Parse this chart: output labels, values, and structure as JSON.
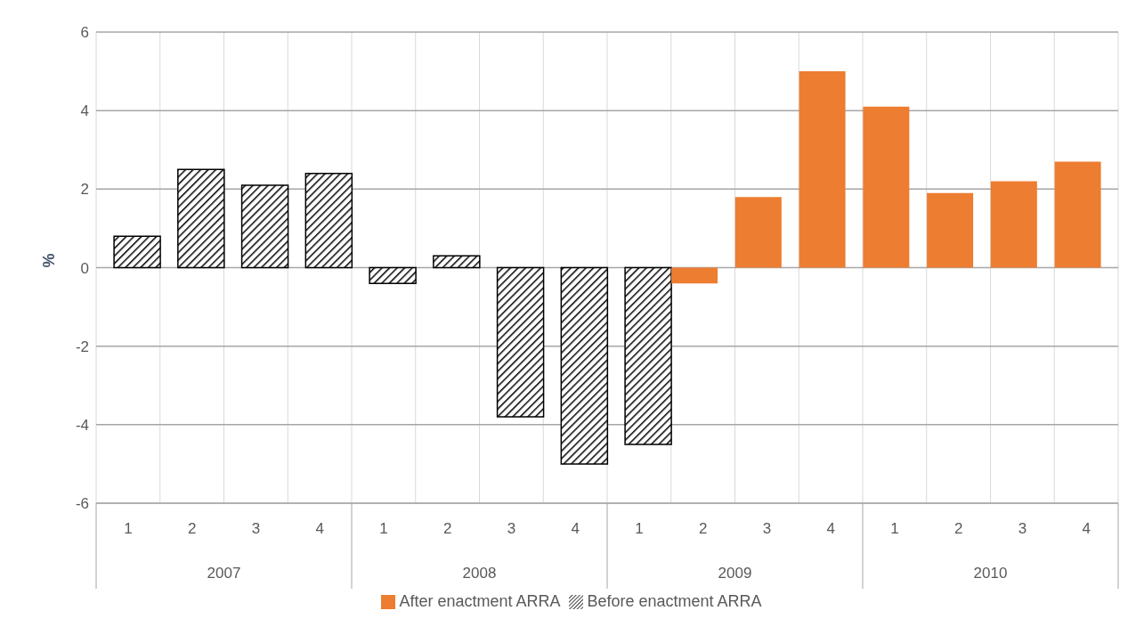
{
  "chart_data": {
    "type": "bar",
    "ylabel": "%",
    "categories": [
      "1",
      "2",
      "3",
      "4",
      "1",
      "2",
      "3",
      "4",
      "1",
      "2",
      "3",
      "4",
      "1",
      "2",
      "3",
      "4"
    ],
    "annotations": [
      "2007",
      "2008",
      "2009",
      "2010"
    ],
    "series": [
      {
        "name": "Before enactment ARRA",
        "color": "#000000",
        "values": [
          0.8,
          2.5,
          2.1,
          2.4,
          -0.4,
          0.3,
          -3.8,
          -5.0,
          -4.5,
          null,
          null,
          null,
          null,
          null,
          null,
          null
        ]
      },
      {
        "name": "After enactment ARRA",
        "color": "#ed7d31",
        "values": [
          null,
          null,
          null,
          null,
          null,
          null,
          null,
          null,
          null,
          -0.4,
          1.8,
          5.0,
          4.1,
          1.9,
          2.2,
          2.7
        ]
      }
    ],
    "ylim": [
      -6,
      6
    ],
    "yticks": [
      -6,
      -4,
      -2,
      0,
      2,
      4,
      6
    ],
    "grid": true,
    "legend": "bottom"
  }
}
